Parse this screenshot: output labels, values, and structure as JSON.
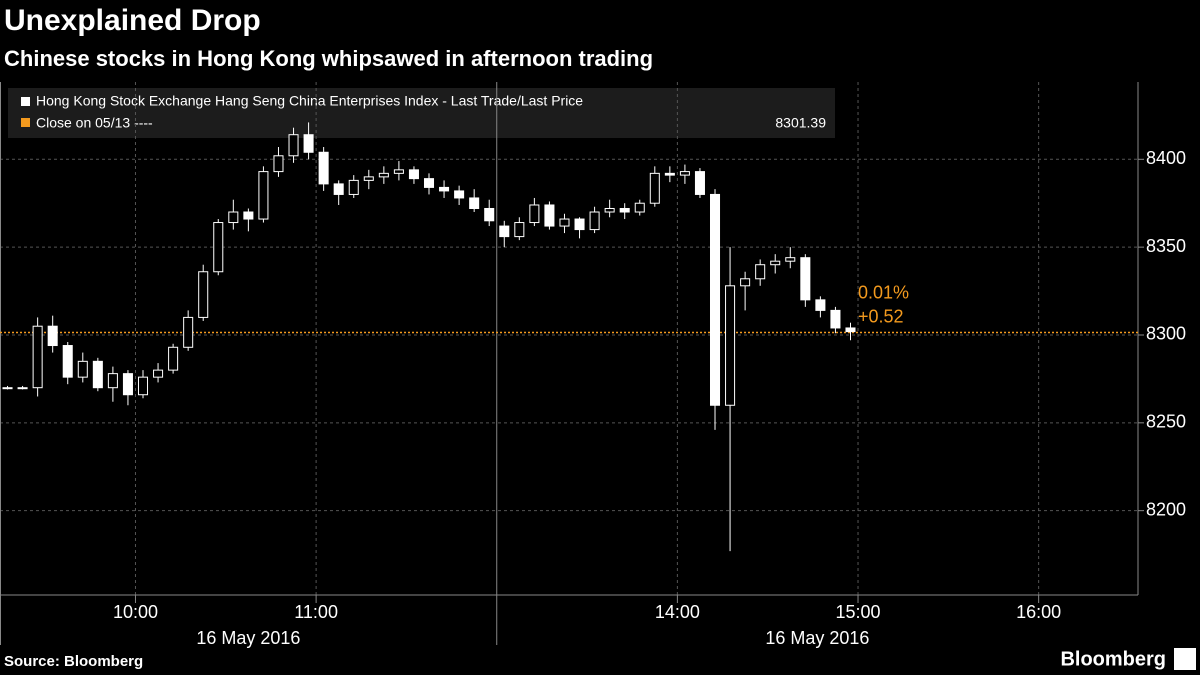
{
  "chart_data": {
    "type": "candlestick",
    "title": "Unexplained Drop",
    "subtitle": "Chinese stocks in Hong Kong whipsawed in afternoon trading",
    "series": [
      {
        "name": "Hong Kong Stock Exchange Hang Seng China Enterprises Index - Last Trade/Last Price",
        "color": "#ffffff",
        "x": [
          "09:15",
          "09:20",
          "09:25",
          "09:30",
          "09:35",
          "09:40",
          "09:45",
          "09:50",
          "09:55",
          "10:00",
          "10:05",
          "10:10",
          "10:15",
          "10:20",
          "10:25",
          "10:30",
          "10:35",
          "10:40",
          "10:45",
          "10:50",
          "10:55",
          "11:00",
          "11:05",
          "11:10",
          "11:15",
          "11:20",
          "11:25",
          "11:30",
          "11:35",
          "11:40",
          "11:45",
          "11:50",
          "11:55",
          "13:00",
          "13:05",
          "13:10",
          "13:15",
          "13:20",
          "13:25",
          "13:30",
          "13:35",
          "13:40",
          "13:45",
          "13:50",
          "13:55",
          "14:00",
          "14:05",
          "14:10",
          "14:15",
          "14:20",
          "14:25",
          "14:30",
          "14:35",
          "14:40",
          "14:45",
          "14:50",
          "14:55"
        ],
        "open": [
          8270,
          8270,
          8270,
          8305,
          8294,
          8276,
          8285,
          8270,
          8278,
          8266,
          8276,
          8280,
          8293,
          8310,
          8336,
          8364,
          8370,
          8366,
          8393,
          8402,
          8414,
          8404,
          8386,
          8380,
          8388,
          8390,
          8392,
          8394,
          8389,
          8384,
          8382,
          8378,
          8372,
          8362,
          8356,
          8364,
          8374,
          8362,
          8366,
          8360,
          8370,
          8372,
          8370,
          8375,
          8392,
          8391,
          8393,
          8380,
          8260,
          8328,
          8332,
          8340,
          8342,
          8344,
          8320,
          8314,
          8304
        ],
        "high": [
          8271,
          8271,
          8310,
          8311,
          8296,
          8290,
          8287,
          8282,
          8280,
          8280,
          8284,
          8295,
          8314,
          8340,
          8366,
          8377,
          8372,
          8396,
          8407,
          8418,
          8421,
          8407,
          8388,
          8391,
          8394,
          8396,
          8399,
          8396,
          8392,
          8388,
          8385,
          8383,
          8377,
          8365,
          8367,
          8378,
          8376,
          8369,
          8367,
          8373,
          8377,
          8375,
          8377,
          8396,
          8396,
          8397,
          8395,
          8383,
          8350,
          8336,
          8343,
          8346,
          8350,
          8346,
          8322,
          8316,
          8307
        ],
        "low": [
          8269,
          8269,
          8265,
          8290,
          8272,
          8273,
          8268,
          8262,
          8260,
          8264,
          8273,
          8278,
          8291,
          8308,
          8334,
          8360,
          8359,
          8364,
          8390,
          8398,
          8400,
          8382,
          8374,
          8378,
          8383,
          8386,
          8388,
          8386,
          8380,
          8378,
          8374,
          8370,
          8362,
          8350,
          8354,
          8362,
          8360,
          8358,
          8355,
          8358,
          8367,
          8366,
          8368,
          8373,
          8387,
          8386,
          8378,
          8246,
          8177,
          8314,
          8328,
          8335,
          8338,
          8316,
          8310,
          8301,
          8297
        ],
        "close": [
          8270,
          8270,
          8305,
          8294,
          8276,
          8285,
          8270,
          8278,
          8266,
          8276,
          8280,
          8293,
          8310,
          8336,
          8364,
          8370,
          8366,
          8393,
          8402,
          8414,
          8404,
          8386,
          8380,
          8388,
          8390,
          8392,
          8394,
          8389,
          8384,
          8382,
          8378,
          8372,
          8365,
          8356,
          8364,
          8374,
          8362,
          8366,
          8360,
          8370,
          8372,
          8370,
          8375,
          8392,
          8391,
          8393,
          8380,
          8260,
          8328,
          8332,
          8340,
          8342,
          8344,
          8320,
          8314,
          8304,
          8301.91
        ]
      }
    ],
    "reference_line": {
      "name": "Close on 05/13 ----",
      "value": 8301.39,
      "color": "#f39a1e"
    },
    "annotations": [
      "0.01%",
      "+0.52"
    ],
    "xlim": [
      "09:15",
      "16:33"
    ],
    "axis_break": [
      "12:00",
      "13:00"
    ],
    "xticks": [
      "10:00",
      "11:00",
      "14:00",
      "15:00",
      "16:00"
    ],
    "date_labels": [
      "16 May 2016",
      "16 May 2016"
    ],
    "ylim": [
      8152,
      8444
    ],
    "yticks": [
      8200,
      8250,
      8300,
      8350,
      8400
    ],
    "grid": true,
    "source": "Source: Bloomberg",
    "brand": "Bloomberg"
  }
}
